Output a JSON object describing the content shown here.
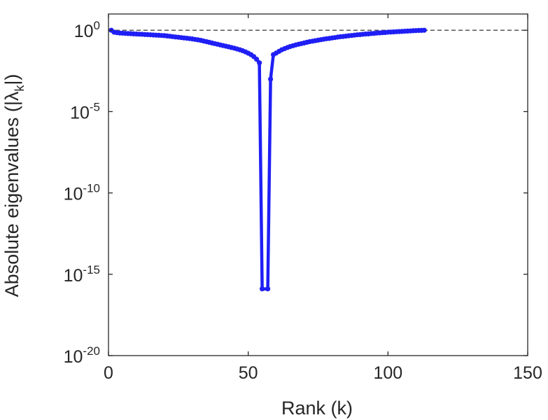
{
  "chart_data": {
    "type": "line",
    "title": "",
    "xlabel": "Rank (k)",
    "ylabel": "Absolute eigenvalues (|λ",
    "ylabel_sub": "k",
    "ylabel_tail": "|)",
    "xlim": [
      0,
      150
    ],
    "ylim_log10": [
      -20,
      1
    ],
    "yscale": "log",
    "xticks": [
      0,
      50,
      100,
      150
    ],
    "xtick_labels": [
      "0",
      "50",
      "100",
      "150"
    ],
    "ytick_exponents": [
      0,
      -5,
      -10,
      -15,
      -20
    ],
    "ytick_base": "10",
    "grid": false,
    "legend": "none",
    "series_color": "#1f1ff5",
    "reference_line": {
      "y": 1,
      "style": "dashed",
      "color": "#555555"
    },
    "series": [
      {
        "x": [
          1,
          2,
          3,
          4,
          5,
          6,
          7,
          8,
          9,
          10,
          11,
          12,
          13,
          14,
          15,
          16,
          17,
          18,
          19,
          20,
          21,
          22,
          23,
          24,
          25,
          26,
          27,
          28,
          29,
          30,
          31,
          32,
          33,
          34,
          35,
          36,
          37,
          38,
          39,
          40,
          41,
          42,
          43,
          44,
          45,
          46,
          47,
          48,
          49,
          50,
          51,
          52,
          53,
          54,
          55,
          57,
          58,
          59,
          60,
          61,
          62,
          63,
          64,
          65,
          66,
          67,
          68,
          69,
          70,
          71,
          72,
          73,
          74,
          75,
          76,
          77,
          78,
          79,
          80,
          81,
          82,
          83,
          84,
          85,
          86,
          87,
          88,
          89,
          90,
          91,
          92,
          93,
          94,
          95,
          96,
          97,
          98,
          99,
          100,
          101,
          102,
          103,
          104,
          105,
          106,
          107,
          108,
          109,
          110,
          111,
          112,
          113
        ],
        "log10_y": [
          0.0,
          -0.12,
          -0.15,
          -0.17,
          -0.18,
          -0.19,
          -0.2,
          -0.21,
          -0.22,
          -0.23,
          -0.24,
          -0.25,
          -0.26,
          -0.27,
          -0.28,
          -0.29,
          -0.3,
          -0.31,
          -0.32,
          -0.33,
          -0.35,
          -0.37,
          -0.39,
          -0.41,
          -0.43,
          -0.45,
          -0.47,
          -0.49,
          -0.51,
          -0.53,
          -0.56,
          -0.59,
          -0.62,
          -0.66,
          -0.7,
          -0.74,
          -0.78,
          -0.82,
          -0.86,
          -0.9,
          -0.94,
          -0.98,
          -1.02,
          -1.06,
          -1.1,
          -1.15,
          -1.2,
          -1.26,
          -1.33,
          -1.41,
          -1.5,
          -1.62,
          -1.78,
          -2.0,
          -15.9,
          -15.9,
          -3.0,
          -1.5,
          -1.4,
          -1.3,
          -1.2,
          -1.13,
          -1.06,
          -1.0,
          -0.95,
          -0.9,
          -0.86,
          -0.82,
          -0.78,
          -0.74,
          -0.7,
          -0.67,
          -0.64,
          -0.61,
          -0.58,
          -0.55,
          -0.52,
          -0.5,
          -0.47,
          -0.45,
          -0.42,
          -0.4,
          -0.38,
          -0.36,
          -0.34,
          -0.32,
          -0.3,
          -0.28,
          -0.27,
          -0.25,
          -0.23,
          -0.22,
          -0.2,
          -0.19,
          -0.17,
          -0.16,
          -0.15,
          -0.14,
          -0.12,
          -0.11,
          -0.1,
          -0.09,
          -0.08,
          -0.07,
          -0.06,
          -0.05,
          -0.04,
          -0.03,
          -0.02,
          -0.01,
          -0.005,
          0.0
        ]
      }
    ]
  }
}
